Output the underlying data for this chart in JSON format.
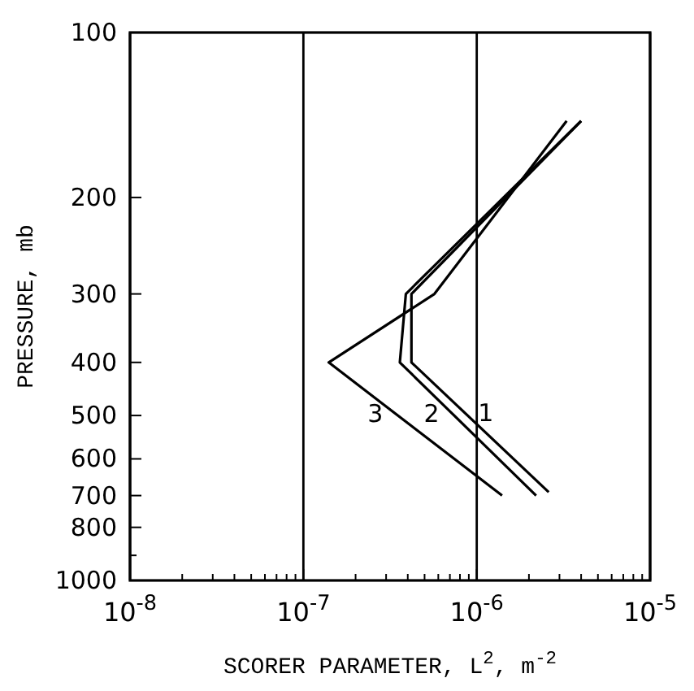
{
  "chart_data": {
    "type": "line",
    "xlabel": "SCORER PARAMETER, L$^{2}$, m$^{-2}$",
    "ylabel": "PRESSURE, mb",
    "log": "xy",
    "grid": "x",
    "line_style": "solid",
    "xlim": [
      1e-08,
      1e-05
    ],
    "ylim": [
      1000,
      100
    ],
    "xticks": [
      {
        "value": 1e-08,
        "label": "10$^{-8}$"
      },
      {
        "value": 2e-08,
        "label": null
      },
      {
        "value": 3e-08,
        "label": null
      },
      {
        "value": 4e-08,
        "label": null
      },
      {
        "value": 5e-08,
        "label": null
      },
      {
        "value": 6e-08,
        "label": null
      },
      {
        "value": 7e-08,
        "label": null
      },
      {
        "value": 8e-08,
        "label": null
      },
      {
        "value": 9e-08,
        "label": null
      },
      {
        "value": 1e-07,
        "label": "10$^{-7}$"
      },
      {
        "value": 2e-07,
        "label": null
      },
      {
        "value": 3e-07,
        "label": null
      },
      {
        "value": 4e-07,
        "label": null
      },
      {
        "value": 5e-07,
        "label": null
      },
      {
        "value": 6e-07,
        "label": null
      },
      {
        "value": 7e-07,
        "label": null
      },
      {
        "value": 8e-07,
        "label": null
      },
      {
        "value": 9e-07,
        "label": null
      },
      {
        "value": 1e-06,
        "label": "10$^{-6}$"
      },
      {
        "value": 2e-06,
        "label": null
      },
      {
        "value": 3e-06,
        "label": null
      },
      {
        "value": 4e-06,
        "label": null
      },
      {
        "value": 5e-06,
        "label": null
      },
      {
        "value": 6e-06,
        "label": null
      },
      {
        "value": 7e-06,
        "label": null
      },
      {
        "value": 8e-06,
        "label": null
      },
      {
        "value": 9e-06,
        "label": null
      },
      {
        "value": 1e-05,
        "label": "10$^{-5}$"
      }
    ],
    "yticks": [
      100,
      200,
      300,
      400,
      500,
      600,
      700,
      800,
      {
        "value": 900,
        "label": null
      },
      1000
    ],
    "series": [
      {
        "name": "1",
        "color": "#000000",
        "x": [
          4e-06,
          4.2e-07,
          4.2e-07,
          2.6e-06
        ],
        "values": [
          145,
          300,
          400,
          690
        ]
      },
      {
        "name": "2",
        "color": "#000000",
        "x": [
          4e-06,
          3.9e-07,
          3.6e-07,
          2.2e-06
        ],
        "values": [
          145,
          300,
          400,
          700
        ]
      },
      {
        "name": "3",
        "color": "#000000",
        "x": [
          3.3e-06,
          5.7e-07,
          1.4e-07,
          1.4e-06
        ],
        "values": [
          145,
          300,
          400,
          700
        ]
      }
    ]
  }
}
